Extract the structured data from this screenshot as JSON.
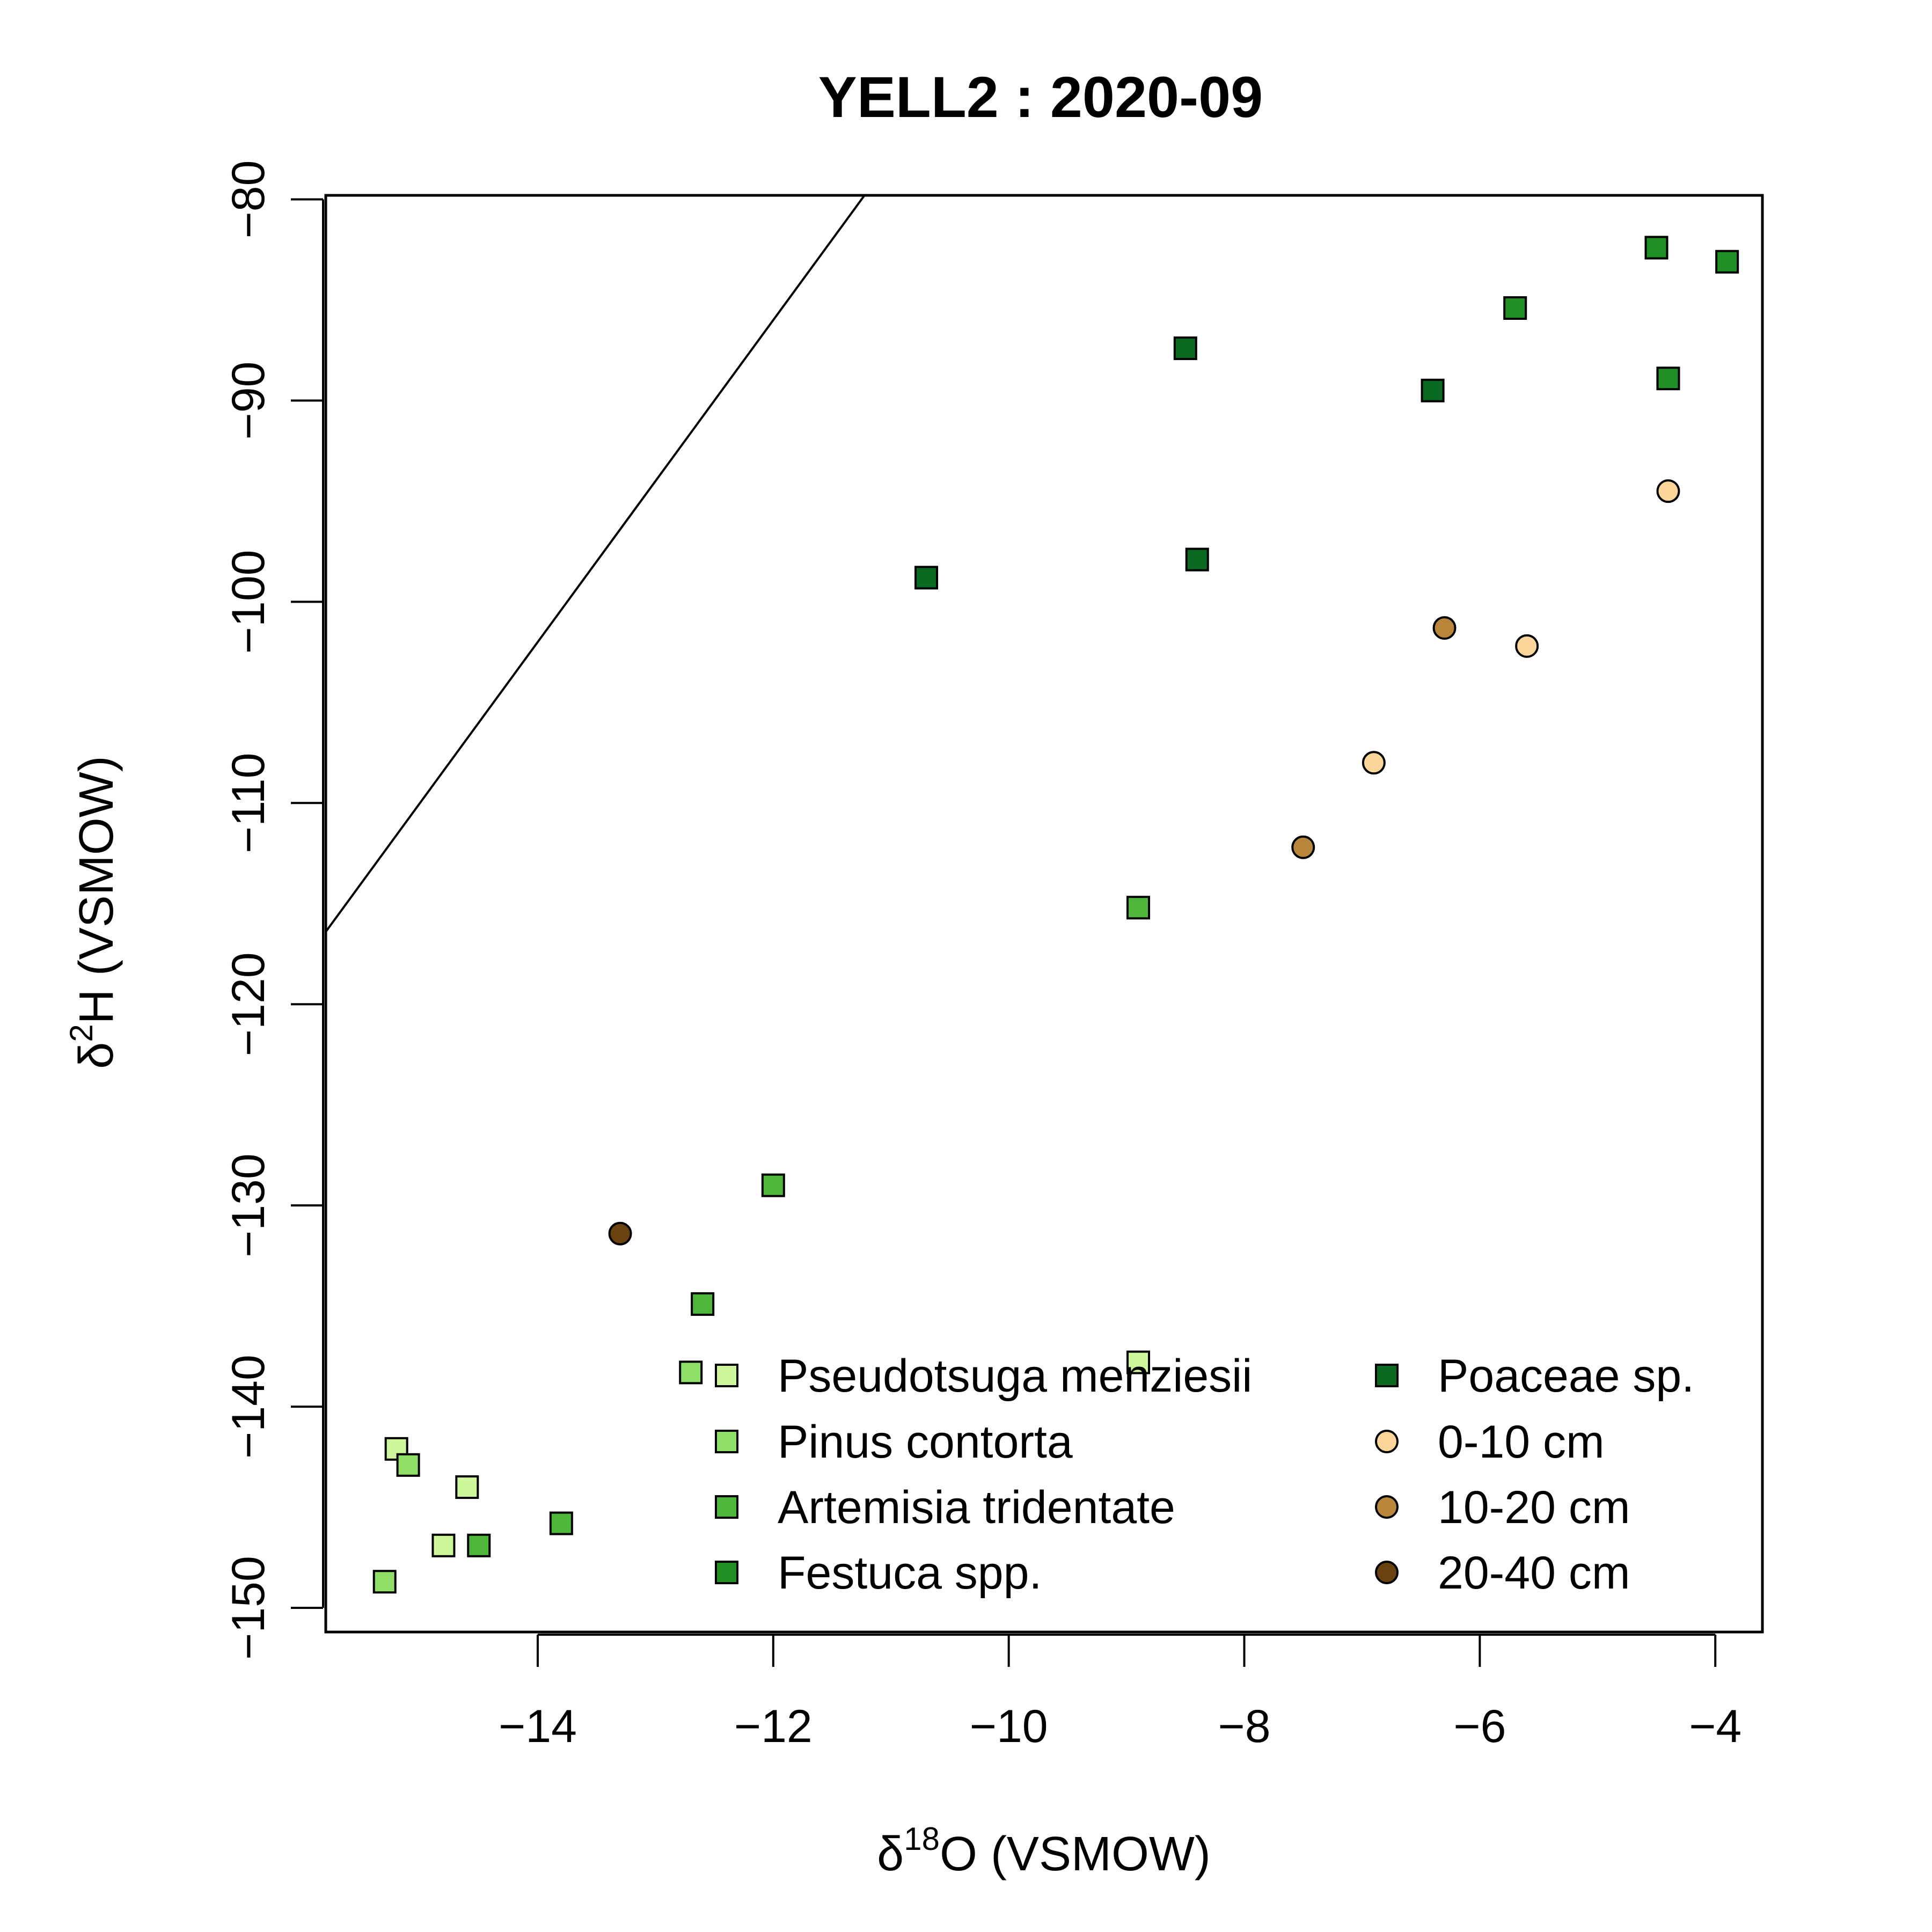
{
  "chart_data": {
    "type": "scatter",
    "title": "YELL2 : 2020-09",
    "xlabel": {
      "prefix": "δ",
      "sup": "18",
      "suffix": "O (VSMOW)"
    },
    "ylabel": {
      "prefix": "δ",
      "sup": "2",
      "suffix": "H (VSMOW)"
    },
    "xlim": [
      -15.8,
      -3.6
    ],
    "ylim": [
      -151.2,
      -79.8
    ],
    "xticks": [
      -14,
      -12,
      -10,
      -8,
      -6,
      -4
    ],
    "yticks": [
      -150,
      -140,
      -130,
      -120,
      -110,
      -100,
      -90,
      -80
    ],
    "grid": false,
    "legend_position": "bottom-right",
    "reference_line": {
      "slope": 8,
      "intercept": 10
    },
    "series": [
      {
        "name": "Pseudotsuga menziesii",
        "shape": "square",
        "color": "#cdf79a",
        "points": [
          [
            -15.2,
            -142.1
          ],
          [
            -14.8,
            -146.9
          ],
          [
            -14.6,
            -144.0
          ],
          [
            -8.9,
            -137.8
          ]
        ]
      },
      {
        "name": "Pinus contorta",
        "shape": "square",
        "color": "#8fde66",
        "points": [
          [
            -15.3,
            -148.7
          ],
          [
            -15.1,
            -142.9
          ],
          [
            -12.7,
            -138.3
          ]
        ]
      },
      {
        "name": "Artemisia tridentate",
        "shape": "square",
        "color": "#4fb83c",
        "points": [
          [
            -14.5,
            -146.9
          ],
          [
            -13.8,
            -145.8
          ],
          [
            -12.6,
            -134.9
          ],
          [
            -12.0,
            -129.0
          ],
          [
            -8.9,
            -115.2
          ]
        ]
      },
      {
        "name": "Festuca spp.",
        "shape": "square",
        "color": "#208f24",
        "points": [
          [
            -4.5,
            -82.4
          ],
          [
            -3.9,
            -83.1
          ],
          [
            -5.7,
            -85.4
          ],
          [
            -4.4,
            -88.9
          ]
        ]
      },
      {
        "name": "Poaceae sp.",
        "shape": "square",
        "color": "#0b6a22",
        "points": [
          [
            -8.5,
            -87.4
          ],
          [
            -6.4,
            -89.5
          ],
          [
            -8.4,
            -97.9
          ],
          [
            -10.7,
            -98.8
          ]
        ]
      },
      {
        "name": "0-10 cm",
        "shape": "circle",
        "color": "#fcd59a",
        "points": [
          [
            -4.4,
            -94.5
          ],
          [
            -5.6,
            -102.2
          ],
          [
            -6.9,
            -108.0
          ]
        ]
      },
      {
        "name": "10-20 cm",
        "shape": "circle",
        "color": "#b8863a",
        "points": [
          [
            -6.3,
            -101.3
          ],
          [
            -7.5,
            -112.2
          ]
        ]
      },
      {
        "name": "20-40 cm",
        "shape": "circle",
        "color": "#6a4210",
        "points": [
          [
            -13.3,
            -131.4
          ]
        ]
      }
    ]
  }
}
